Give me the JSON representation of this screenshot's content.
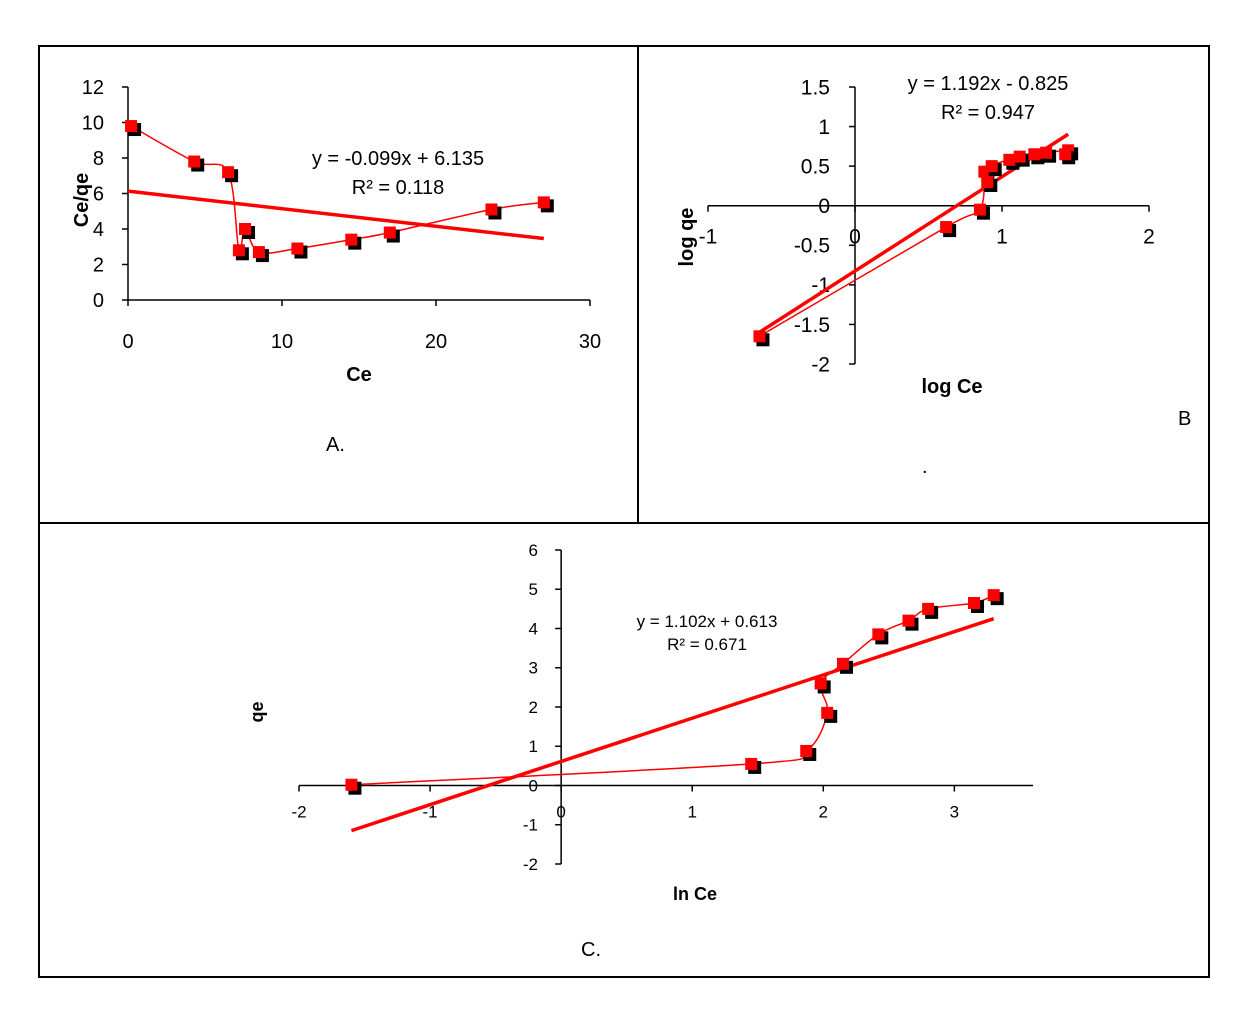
{
  "chart_data": [
    {
      "type": "scatter",
      "panel_label": "A.",
      "xlabel": "Ce",
      "ylabel": "Ce/qe",
      "xlim": [
        0,
        30
      ],
      "ylim": [
        0,
        12
      ],
      "xticks": [
        0,
        10,
        20,
        30
      ],
      "yticks": [
        0,
        2,
        4,
        6,
        8,
        10,
        12
      ],
      "series": [
        {
          "x": [
            0.2,
            4.3,
            6.5,
            7.2,
            7.6,
            8.5,
            11.0,
            14.5,
            17.0,
            23.6,
            27.0
          ],
          "y": [
            9.8,
            7.8,
            7.2,
            2.8,
            4.0,
            2.7,
            2.9,
            3.4,
            3.8,
            5.1,
            5.5
          ]
        }
      ],
      "trendline": {
        "slope": -0.099,
        "intercept": 6.135,
        "x_range": [
          0,
          27
        ]
      },
      "equation": "y = -0.099x + 6.135",
      "r_squared": "R² = 0.118",
      "colors": {
        "series": "#ff0000",
        "shadow": "#000000",
        "axis": "#000000"
      }
    },
    {
      "type": "scatter",
      "panel_label": "B",
      "note": ".",
      "xlabel": "log Ce",
      "ylabel": "log qe",
      "xlim": [
        -1,
        2
      ],
      "ylim": [
        -2,
        1.5
      ],
      "xticks": [
        -1,
        0,
        1,
        2
      ],
      "yticks": [
        -2,
        -1.5,
        -1,
        -0.5,
        0,
        0.5,
        1,
        1.5
      ],
      "xtick_labels": [
        "-1",
        "0",
        "1",
        "2"
      ],
      "ytick_labels": [
        "-2",
        "-1.5",
        "-1",
        "-0.5",
        "0",
        "0.5",
        "1",
        "1.5"
      ],
      "series": [
        {
          "x": [
            -0.65,
            0.62,
            0.85,
            0.88,
            0.9,
            0.93,
            1.05,
            1.12,
            1.22,
            1.3,
            1.45,
            1.43
          ],
          "y": [
            -1.65,
            -0.27,
            -0.05,
            0.43,
            0.3,
            0.5,
            0.58,
            0.62,
            0.65,
            0.67,
            0.7,
            0.65
          ]
        }
      ],
      "trendline": {
        "slope": 1.192,
        "intercept": -0.825,
        "x_range": [
          -0.65,
          1.45
        ]
      },
      "equation": "y = 1.192x - 0.825",
      "r_squared": "R² = 0.947",
      "colors": {
        "series": "#ff0000",
        "shadow": "#000000",
        "axis": "#000000"
      }
    },
    {
      "type": "scatter",
      "panel_label": "C.",
      "xlabel": "ln Ce",
      "ylabel": "qe",
      "xlim": [
        -2,
        3.6
      ],
      "ylim": [
        -2,
        6
      ],
      "xticks": [
        -2,
        -1,
        0,
        1,
        2,
        3
      ],
      "yticks": [
        -2,
        -1,
        0,
        1,
        2,
        3,
        4,
        5,
        6
      ],
      "series": [
        {
          "x": [
            -1.6,
            1.45,
            1.87,
            2.03,
            1.98,
            2.15,
            2.42,
            2.65,
            2.8,
            3.15,
            3.3
          ],
          "y": [
            0.02,
            0.55,
            0.88,
            1.85,
            2.6,
            3.1,
            3.85,
            4.2,
            4.5,
            4.65,
            4.85
          ]
        }
      ],
      "trendline": {
        "slope": 1.102,
        "intercept": 0.613,
        "x_range": [
          -1.6,
          3.3
        ]
      },
      "equation": "y = 1.102x + 0.613",
      "r_squared": "R² = 0.671",
      "colors": {
        "series": "#ff0000",
        "shadow": "#000000",
        "axis": "#000000"
      }
    }
  ]
}
